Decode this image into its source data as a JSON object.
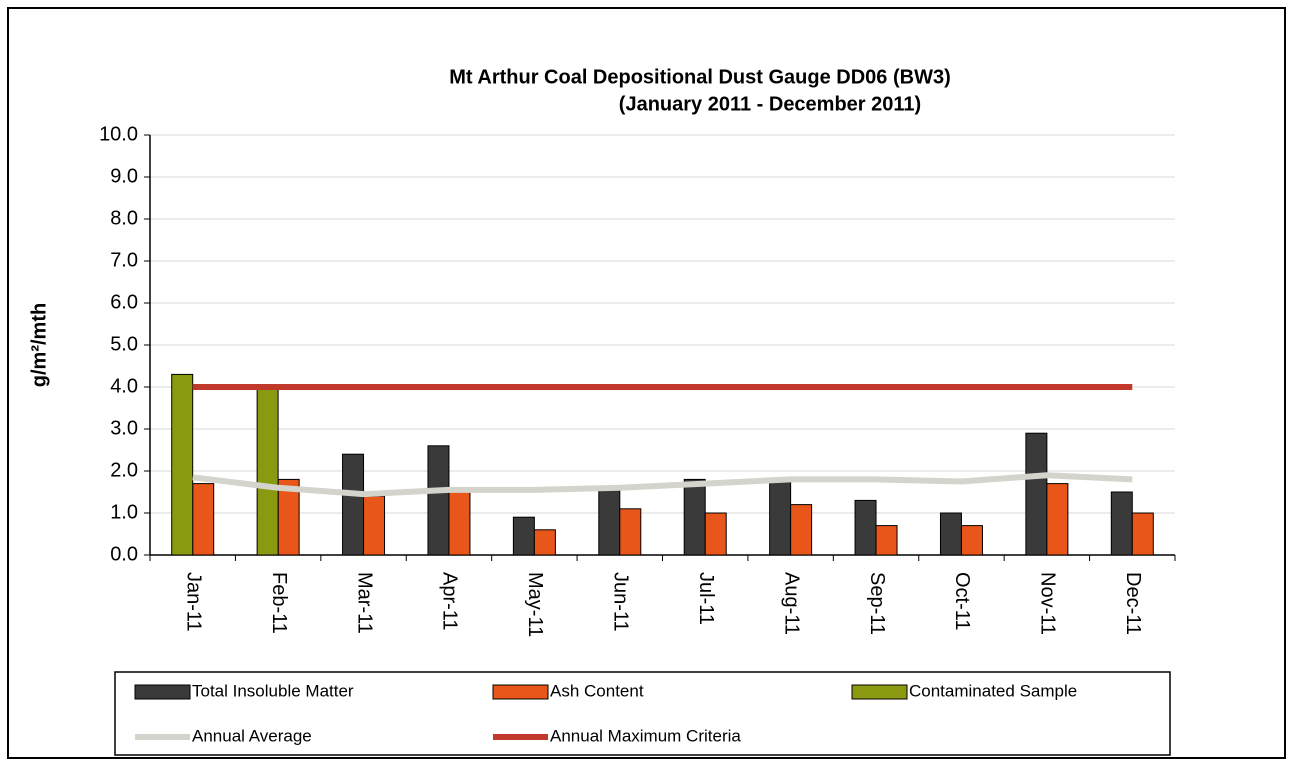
{
  "chart_data": {
    "type": "bar",
    "title": "Mt Arthur Coal Depositional Dust Gauge DD06 (BW3)",
    "subtitle": "(January 2011 - December 2011)",
    "y_label": "g/m²/mth",
    "categories": [
      "Jan-11",
      "Feb-11",
      "Mar-11",
      "Apr-11",
      "May-11",
      "Jun-11",
      "Jul-11",
      "Aug-11",
      "Sep-11",
      "Oct-11",
      "Nov-11",
      "Dec-11"
    ],
    "series": [
      {
        "name": "Total Insoluble Matter",
        "type": "bar",
        "color": "#3a3a3a",
        "values": [
          null,
          null,
          2.4,
          2.6,
          0.9,
          1.6,
          1.8,
          1.8,
          1.3,
          1.0,
          2.9,
          1.5
        ]
      },
      {
        "name": "Ash Content",
        "type": "bar",
        "color": "#e8561a",
        "values": [
          1.7,
          1.8,
          1.4,
          1.5,
          0.6,
          1.1,
          1.0,
          1.2,
          0.7,
          0.7,
          1.7,
          1.0
        ]
      },
      {
        "name": "Contaminated Sample",
        "type": "bar",
        "color": "#8a9a10",
        "values": [
          4.3,
          4.0,
          null,
          null,
          null,
          null,
          null,
          null,
          null,
          null,
          null,
          null
        ]
      },
      {
        "name": "Annual Average",
        "type": "line",
        "color": "#d4d4cc",
        "values": [
          1.85,
          1.6,
          1.45,
          1.55,
          1.55,
          1.6,
          1.7,
          1.8,
          1.8,
          1.75,
          1.9,
          1.8
        ]
      },
      {
        "name": "Annual Maximum Criteria",
        "type": "line",
        "color": "#c0392b",
        "values": [
          4.0,
          4.0,
          4.0,
          4.0,
          4.0,
          4.0,
          4.0,
          4.0,
          4.0,
          4.0,
          4.0,
          4.0
        ]
      }
    ],
    "ylim": [
      0,
      10
    ],
    "yticks": [
      {
        "value": 0,
        "label": "0.0"
      },
      {
        "value": 1,
        "label": "1.0"
      },
      {
        "value": 2,
        "label": "2.0"
      },
      {
        "value": 3,
        "label": "3.0"
      },
      {
        "value": 4,
        "label": "4.0"
      },
      {
        "value": 5,
        "label": "5.0"
      },
      {
        "value": 6,
        "label": "6.0"
      },
      {
        "value": 7,
        "label": "7.0"
      },
      {
        "value": 8,
        "label": "8.0"
      },
      {
        "value": 9,
        "label": "9.0"
      },
      {
        "value": 10,
        "label": "10.0"
      }
    ],
    "grid": true,
    "legend": "bottom"
  }
}
